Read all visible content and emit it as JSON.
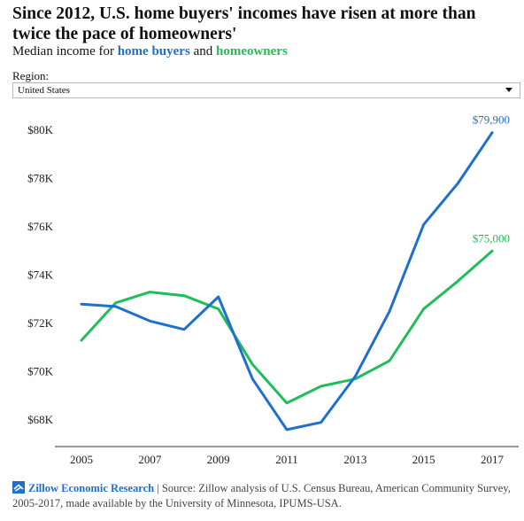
{
  "title": "Since 2012, U.S. home buyers' incomes have risen at more than twice the pace of homeowners'",
  "subtitle": {
    "prefix": "Median income for ",
    "buyers": "home buyers",
    "and": " and ",
    "owners": "homeowners"
  },
  "region": {
    "label": "Region:",
    "selected": "United States"
  },
  "footer": {
    "brand": "Zillow Economic Research",
    "separator": " | ",
    "source": "Source: Zillow analysis of U.S. Census Bureau, American Community Survey, 2005-2017, made available by the University of Minnesota, IPUMS-USA."
  },
  "colors": {
    "buyers": "#1f6fce",
    "owners": "#1fbe5a"
  },
  "chart_data": {
    "type": "line",
    "title": "",
    "xlabel": "",
    "ylabel": "",
    "x": [
      2005,
      2006,
      2007,
      2008,
      2009,
      2010,
      2011,
      2012,
      2013,
      2014,
      2015,
      2016,
      2017
    ],
    "series": [
      {
        "key": "buyers",
        "values": [
          72800,
          72700,
          72100,
          71750,
          73100,
          69700,
          67600,
          67900,
          69800,
          72500,
          76100,
          77800,
          79900
        ]
      },
      {
        "key": "owners",
        "values": [
          71300,
          72850,
          73300,
          73150,
          72600,
          70300,
          68700,
          69400,
          69700,
          70450,
          72600,
          73750,
          75000
        ]
      }
    ],
    "end_labels": {
      "buyers": "$79,900",
      "owners": "$75,000"
    },
    "xticks": [
      2005,
      2007,
      2009,
      2011,
      2013,
      2015,
      2017
    ],
    "yticks": [
      {
        "value": 68000,
        "label": "$68K"
      },
      {
        "value": 70000,
        "label": "$70K"
      },
      {
        "value": 72000,
        "label": "$72K"
      },
      {
        "value": 74000,
        "label": "$74K"
      },
      {
        "value": 76000,
        "label": "$76K"
      },
      {
        "value": 78000,
        "label": "$78K"
      },
      {
        "value": 80000,
        "label": "$80K"
      }
    ],
    "xlim": [
      2005,
      2017
    ],
    "ylim": [
      67000,
      81000
    ],
    "grid": false
  }
}
